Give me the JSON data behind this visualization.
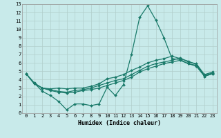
{
  "xlabel": "Humidex (Indice chaleur)",
  "bg_color": "#c8eaea",
  "grid_color": "#b0cecb",
  "line_color": "#1a7a6a",
  "xlim": [
    -0.5,
    23.5
  ],
  "ylim": [
    0,
    13
  ],
  "xticks": [
    0,
    1,
    2,
    3,
    4,
    5,
    6,
    7,
    8,
    9,
    10,
    11,
    12,
    13,
    14,
    15,
    16,
    17,
    18,
    19,
    20,
    21,
    22,
    23
  ],
  "yticks": [
    0,
    1,
    2,
    3,
    4,
    5,
    6,
    7,
    8,
    9,
    10,
    11,
    12,
    13
  ],
  "series": [
    [
      4.7,
      3.6,
      2.6,
      2.1,
      1.4,
      0.4,
      1.1,
      1.1,
      0.9,
      1.1,
      3.1,
      2.1,
      3.4,
      7.0,
      11.4,
      12.8,
      11.1,
      9.0,
      6.5,
      6.4,
      5.9,
      5.7,
      4.4,
      4.7
    ],
    [
      4.7,
      3.6,
      3.0,
      2.9,
      3.0,
      2.9,
      3.0,
      3.0,
      3.2,
      3.5,
      4.1,
      4.3,
      4.6,
      5.1,
      5.5,
      6.0,
      6.3,
      6.5,
      6.8,
      6.5,
      6.2,
      5.8,
      4.5,
      4.8
    ],
    [
      4.7,
      3.5,
      3.0,
      2.8,
      2.6,
      2.5,
      2.7,
      2.8,
      3.0,
      3.3,
      3.6,
      3.9,
      4.1,
      4.6,
      5.1,
      5.6,
      5.9,
      6.1,
      6.3,
      6.6,
      6.1,
      5.9,
      4.6,
      4.9
    ],
    [
      4.7,
      3.5,
      3.0,
      2.7,
      2.5,
      2.4,
      2.5,
      2.7,
      2.8,
      3.0,
      3.3,
      3.6,
      3.9,
      4.3,
      4.9,
      5.3,
      5.6,
      5.9,
      6.1,
      6.3,
      5.9,
      5.6,
      4.4,
      4.7
    ]
  ]
}
